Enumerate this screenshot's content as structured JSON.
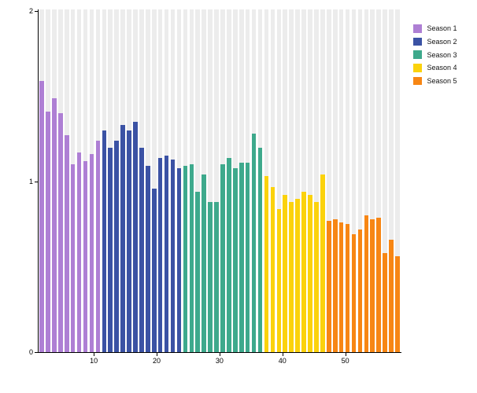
{
  "chart_data": {
    "type": "bar",
    "title": "",
    "xlabel": "",
    "ylabel": "",
    "ylim": [
      0,
      2
    ],
    "y_ticks": [
      0,
      1,
      2
    ],
    "x_ticks": [
      10,
      20,
      30,
      40,
      50
    ],
    "grid": "vertical background stripes per bar slot",
    "legend_position": "top-right-outside",
    "series": [
      {
        "name": "Season 1",
        "color": "#ae7fd4",
        "start_x": 1,
        "values": [
          1.59,
          1.41,
          1.49,
          1.4,
          1.27,
          1.1,
          1.17,
          1.12,
          1.16,
          1.24
        ]
      },
      {
        "name": "Season 2",
        "color": "#3b52a4",
        "start_x": 11,
        "values": [
          1.3,
          1.2,
          1.24,
          1.33,
          1.3,
          1.35,
          1.2,
          1.09,
          0.96,
          1.14,
          1.15,
          1.13,
          1.08
        ]
      },
      {
        "name": "Season 3",
        "color": "#3ea98c",
        "start_x": 24,
        "values": [
          1.09,
          1.1,
          0.94,
          1.04,
          0.88,
          0.88,
          1.1,
          1.14,
          1.08,
          1.11,
          1.11,
          1.28,
          1.2
        ]
      },
      {
        "name": "Season 4",
        "color": "#fbd20c",
        "start_x": 37,
        "values": [
          1.03,
          0.97,
          0.84,
          0.92,
          0.88,
          0.9,
          0.94,
          0.92,
          0.88,
          1.04
        ]
      },
      {
        "name": "Season 5",
        "color": "#f78614",
        "start_x": 47,
        "values": [
          0.77,
          0.78,
          0.76,
          0.75,
          0.69,
          0.72,
          0.8,
          0.78,
          0.79,
          0.58,
          0.66,
          0.56
        ]
      }
    ]
  },
  "legend": {
    "items": [
      {
        "label": "Season 1",
        "color": "#ae7fd4"
      },
      {
        "label": "Season 2",
        "color": "#3b52a4"
      },
      {
        "label": "Season 3",
        "color": "#3ea98c"
      },
      {
        "label": "Season 4",
        "color": "#fbd20c"
      },
      {
        "label": "Season 5",
        "color": "#f78614"
      }
    ]
  }
}
